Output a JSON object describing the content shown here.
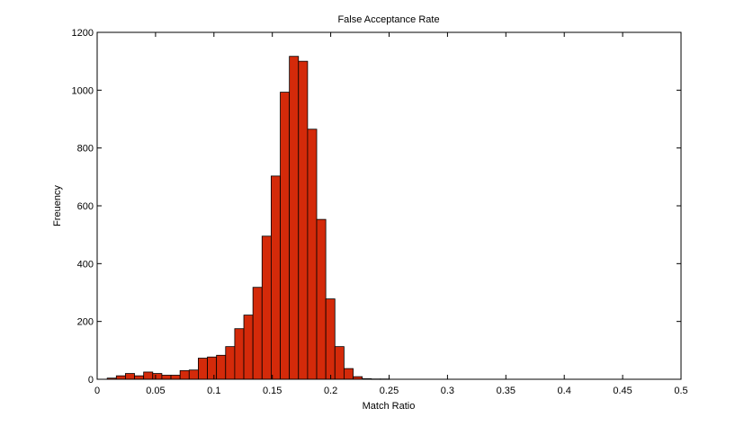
{
  "chart_data": {
    "type": "bar",
    "title": "False Acceptance Rate",
    "xlabel": "Match Ratio",
    "ylabel": "Freuency",
    "xlim": [
      0,
      0.5
    ],
    "ylim": [
      0,
      1200
    ],
    "xticks": [
      0,
      0.05,
      0.1,
      0.15,
      0.2,
      0.25,
      0.3,
      0.35,
      0.4,
      0.45,
      0.5
    ],
    "xtick_labels": [
      "0",
      "0.05",
      "0.1",
      "0.15",
      "0.2",
      "0.25",
      "0.3",
      "0.35",
      "0.4",
      "0.45",
      "0.5"
    ],
    "yticks": [
      0,
      200,
      400,
      600,
      800,
      1000,
      1200
    ],
    "ytick_labels": [
      "0",
      "200",
      "400",
      "600",
      "800",
      "1000",
      "1200"
    ],
    "bin_width": 0.0078,
    "bin_centers": [
      0.0125,
      0.0203,
      0.0281,
      0.0359,
      0.0437,
      0.0515,
      0.0593,
      0.0671,
      0.0749,
      0.0827,
      0.0905,
      0.0983,
      0.1061,
      0.1139,
      0.1217,
      0.1295,
      0.1373,
      0.1451,
      0.1529,
      0.1607,
      0.1685,
      0.1763,
      0.1841,
      0.1919,
      0.1997,
      0.2075,
      0.2153,
      0.2231,
      0.2309,
      0.2387,
      0.2465
    ],
    "values": [
      4,
      12,
      20,
      12,
      25,
      20,
      14,
      14,
      30,
      32,
      73,
      77,
      83,
      113,
      175,
      222,
      318,
      495,
      703,
      993,
      1117,
      1100,
      865,
      553,
      278,
      113,
      37,
      9,
      2,
      1,
      1
    ],
    "bar_color": "#d42a0a",
    "bar_edge_color": "#000000",
    "grid": false
  }
}
